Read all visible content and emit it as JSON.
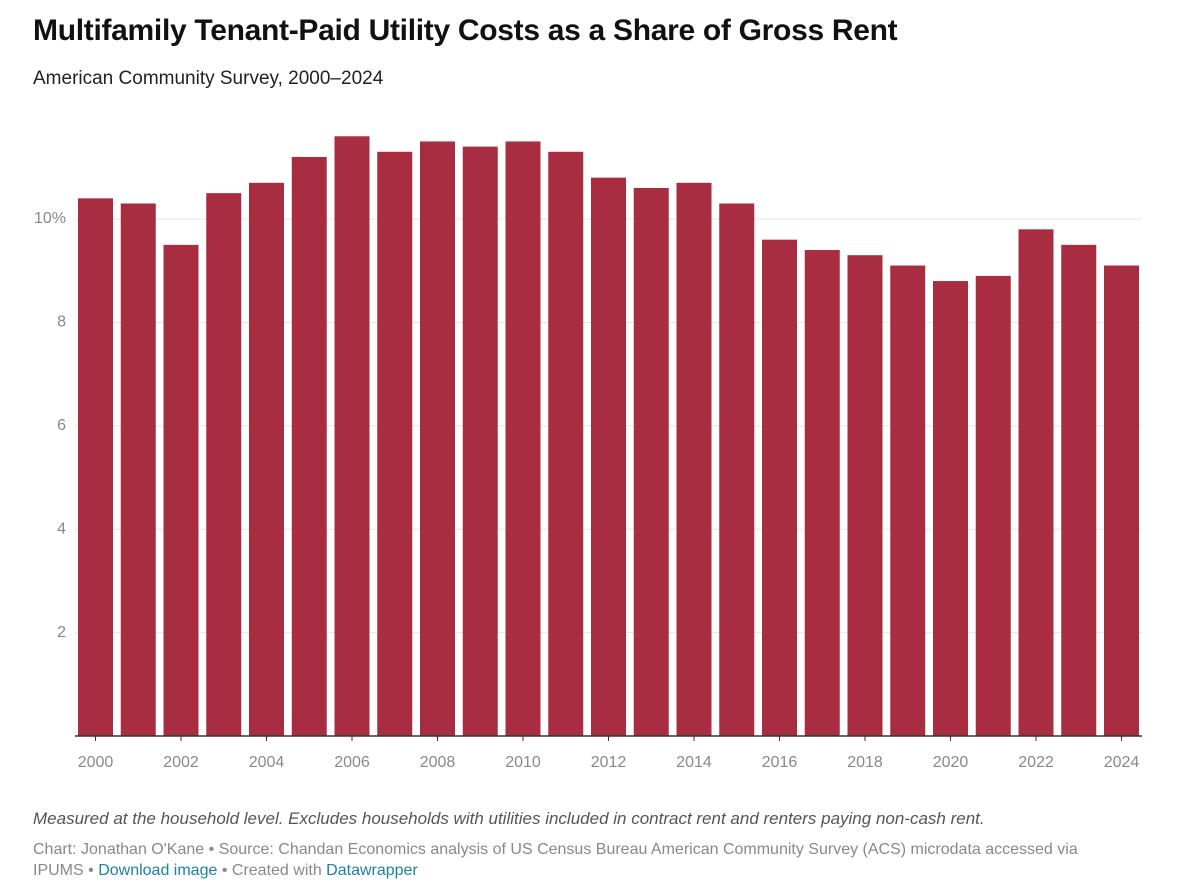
{
  "chart_data": {
    "type": "bar",
    "title": "Multifamily Tenant-Paid Utility Costs as a Share of Gross Rent",
    "subtitle": "American Community Survey, 2000–2024",
    "categories": [
      "2000",
      null,
      "2002",
      null,
      "2004",
      null,
      "2006",
      null,
      "2008",
      null,
      "2010",
      null,
      "2012",
      null,
      "2014",
      null,
      "2016",
      null,
      "2018",
      null,
      "2020",
      null,
      "2022",
      null,
      "2024"
    ],
    "values": [
      10.4,
      10.3,
      9.5,
      10.5,
      10.7,
      11.2,
      11.6,
      11.3,
      11.5,
      11.4,
      11.5,
      11.3,
      10.8,
      10.6,
      10.7,
      10.3,
      9.6,
      9.4,
      9.3,
      9.1,
      8.8,
      8.9,
      9.8,
      9.5,
      9.1
    ],
    "color": "#a92d40",
    "ylim": [
      0,
      12
    ],
    "yticks": [
      2,
      4,
      6,
      8,
      {
        "value": 10,
        "label": "10%"
      }
    ],
    "grid": true,
    "note": "Measured at the household level. Excludes households with utilities included in contract rent and renters paying non-cash rent.",
    "byline": "Chart: Jonathan O'Kane",
    "separator": "•",
    "source": "Source: Chandan Economics analysis of US Census Bureau American Community Survey (ACS) microdata accessed via IPUMS",
    "download": "Download image",
    "created_with": "Created with",
    "tool": "Datawrapper"
  }
}
